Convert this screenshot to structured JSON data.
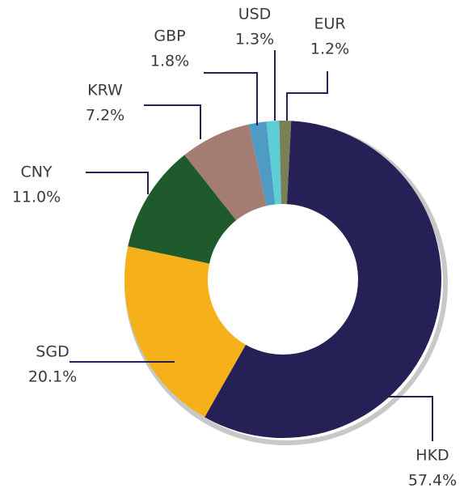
{
  "chart_data": {
    "type": "donut",
    "categories": [
      "HKD",
      "SGD",
      "CNY",
      "KRW",
      "GBP",
      "USD",
      "EUR"
    ],
    "values": [
      57.4,
      20.1,
      11.0,
      7.2,
      1.8,
      1.3,
      1.2
    ],
    "value_labels": [
      "57.4%",
      "20.1%",
      "11.0%",
      "7.2%",
      "1.8%",
      "1.3%",
      "1.2%"
    ],
    "colors": [
      "#252157",
      "#f5b01a",
      "#1f5a2c",
      "#a47d72",
      "#4f9bc4",
      "#5ccfd6",
      "#7a7f56"
    ]
  }
}
